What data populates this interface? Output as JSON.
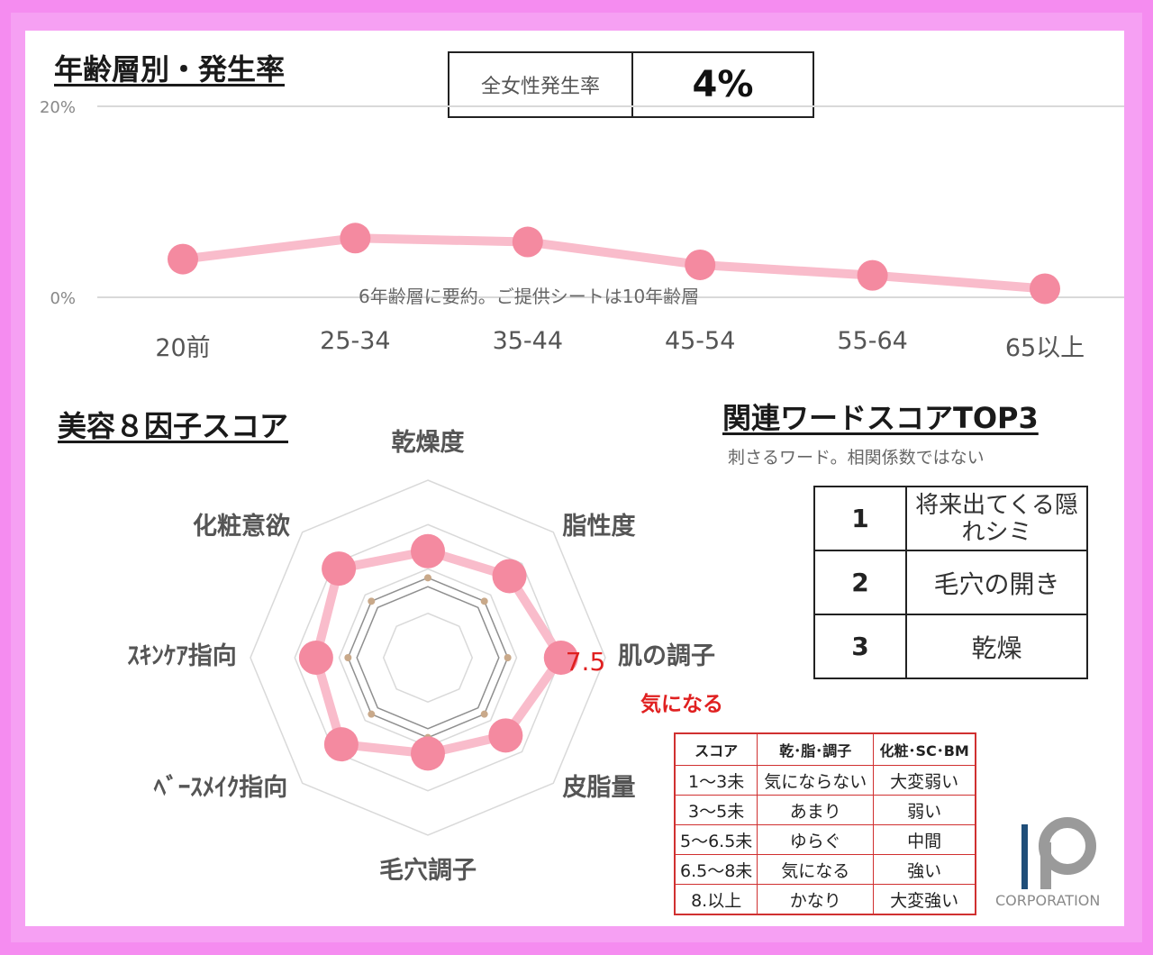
{
  "titles": {
    "age_chart": "年齢層別・発生率",
    "radar": "美容８因子スコア",
    "related_words": "関連ワードスコアTOP3"
  },
  "kpi": {
    "label": "全女性発生率",
    "value": "4%"
  },
  "notes": {
    "age_chart_note": "6年齢層に要約。ご提供シートは10年齢層",
    "related_words_note": "刺さるワード。相関係数ではない"
  },
  "top3": [
    {
      "rank": "1",
      "word": "将来出てくる隠れシミ"
    },
    {
      "rank": "2",
      "word": "毛穴の開き"
    },
    {
      "rank": "3",
      "word": "乾燥"
    }
  ],
  "legend_table": {
    "headers": [
      "スコア",
      "乾･脂･調子",
      "化粧･SC･BM"
    ],
    "rows": [
      [
        "1～3未",
        "気にならない",
        "大変弱い"
      ],
      [
        "3～5未",
        "あまり",
        "弱い"
      ],
      [
        "5～6.5未",
        "ゆらぐ",
        "中間"
      ],
      [
        "6.5～8未",
        "気になる",
        "強い"
      ],
      [
        "8.以上",
        "かなり",
        "大変強い"
      ]
    ]
  },
  "logo": {
    "text": "CORPORATION"
  },
  "colors": {
    "border_pink": "#f58cf0",
    "series_pink": "#f48aa0",
    "series_line": "#f9bccb",
    "highlight_red": "#e02020",
    "legend_border": "#d03030"
  },
  "chart_data": [
    {
      "type": "line",
      "title": "年齢層別・発生率",
      "categories": [
        "20前",
        "25-34",
        "35-44",
        "45-54",
        "55-64",
        "65以上"
      ],
      "values": [
        4.0,
        6.2,
        5.8,
        3.4,
        2.3,
        0.9
      ],
      "unit": "%",
      "yticks": [
        "0%",
        "20%"
      ],
      "ylim": [
        0,
        20
      ],
      "grid": true,
      "legend": "none"
    },
    {
      "type": "radar",
      "title": "美容８因子スコア",
      "axes": [
        "乾燥度",
        "脂性度",
        "肌の調子",
        "皮脂量",
        "毛穴調子",
        "ベ゛ースメイク指向",
        "ｽｷﾝｹｱ指向",
        "化粧意欲"
      ],
      "axis_labels": [
        "乾燥度",
        "脂性度",
        "肌の調子",
        "皮脂量",
        "毛穴調子",
        "ﾍﾞｰｽﾒｲｸ指向",
        "ｽｷﾝｹｱ指向",
        "化粧意欲"
      ],
      "range": [
        0,
        10
      ],
      "rings": [
        2,
        4,
        6,
        8,
        10
      ],
      "series": [
        {
          "values": [
            6.0,
            6.5,
            7.5,
            6.2,
            5.4,
            6.9,
            6.3,
            7.1
          ]
        },
        {
          "values": [
            4.5,
            4.5,
            4.5,
            4.5,
            4.5,
            4.5,
            4.5,
            4.5
          ]
        },
        {
          "values": [
            4.0,
            4.0,
            4.0,
            4.0,
            4.0,
            4.0,
            4.0,
            4.0
          ]
        }
      ],
      "highlight": {
        "axis": "肌の調子",
        "value_label": "7.5",
        "level_label": "気になる"
      }
    }
  ]
}
